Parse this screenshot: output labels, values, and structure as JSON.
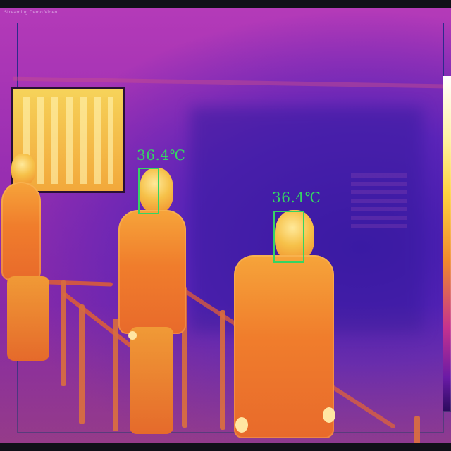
{
  "window": {
    "caption": "Streaming Demo Video"
  },
  "detections": [
    {
      "temperature_label": "36.4℃"
    },
    {
      "temperature_label": "36.4℃"
    }
  ],
  "colors": {
    "overlay": "#35d463",
    "roi_border": "#2e2a8c"
  },
  "icons": {
    "color_scale": "color-scale-bar"
  }
}
